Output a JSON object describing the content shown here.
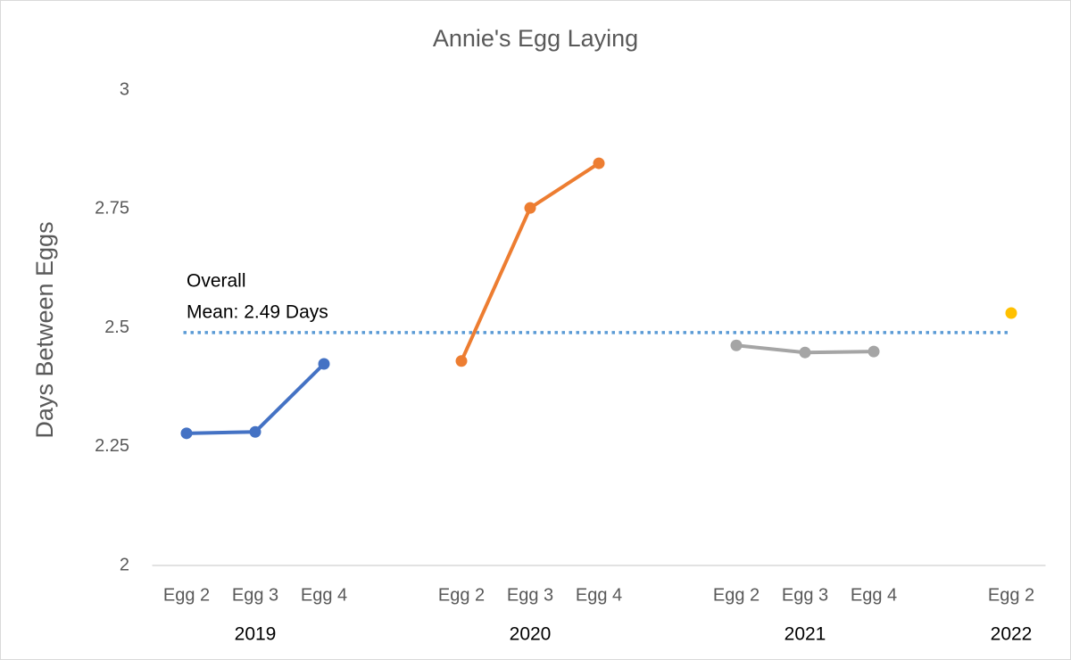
{
  "chart_data": {
    "type": "line",
    "title": "Annie's Egg Laying",
    "y_label": "Days Between Eggs",
    "categories": [
      "Egg 2",
      "Egg 3",
      "Egg 4",
      null,
      "Egg 2",
      "Egg 3",
      "Egg 4",
      null,
      "Egg 2",
      "Egg 3",
      "Egg 4",
      null,
      "Egg 2"
    ],
    "group_labels": [
      null,
      "2019",
      null,
      null,
      null,
      "2020",
      null,
      null,
      null,
      "2021",
      null,
      null,
      "2022"
    ],
    "series": [
      {
        "color": "#4472c4",
        "values": [
          2.278,
          2.281,
          2.424,
          null,
          null,
          null,
          null,
          null,
          null,
          null,
          null,
          null,
          null
        ]
      },
      {
        "color": "#ed7d31",
        "values": [
          null,
          null,
          null,
          null,
          2.43,
          2.752,
          2.846,
          null,
          null,
          null,
          null,
          null,
          null
        ]
      },
      {
        "color": "#a5a5a5",
        "values": [
          null,
          null,
          null,
          null,
          null,
          null,
          null,
          null,
          2.463,
          2.448,
          2.45,
          null,
          null
        ]
      },
      {
        "color": "#ffc000",
        "values": [
          null,
          null,
          null,
          null,
          null,
          null,
          null,
          null,
          null,
          null,
          null,
          null,
          2.531
        ]
      }
    ],
    "mean_line": {
      "value": 2.49,
      "color": "#5b9bd5",
      "annotation": [
        "Overall",
        "Mean: 2.49 Days"
      ]
    },
    "ylim": [
      2,
      3
    ],
    "yticks": [
      2,
      2.25,
      2.5,
      2.75,
      3
    ],
    "grid": false
  }
}
